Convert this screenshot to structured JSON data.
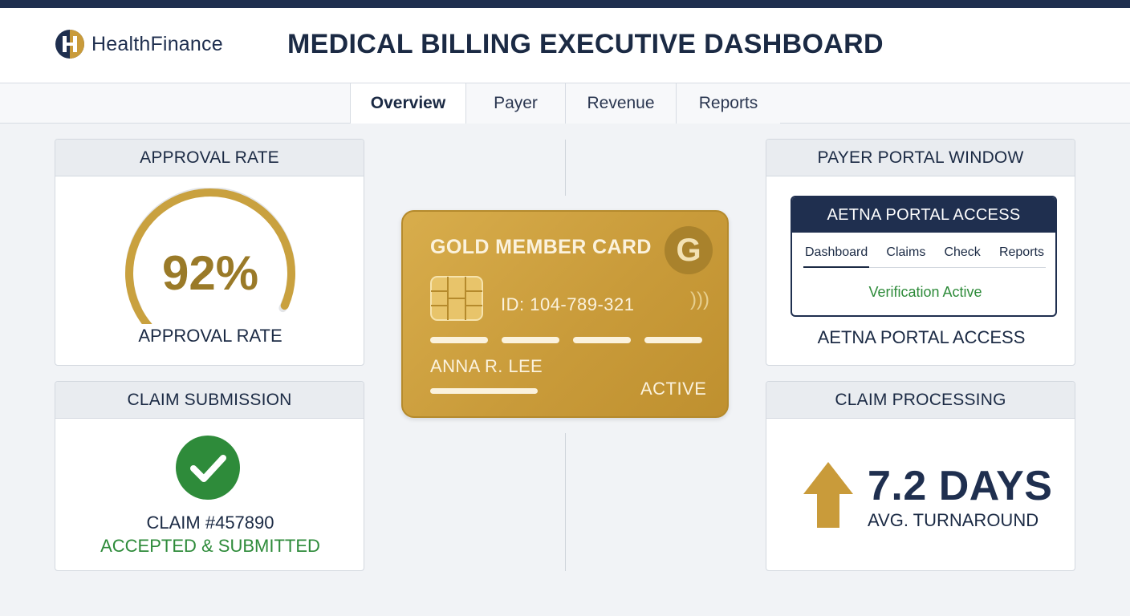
{
  "app": {
    "brand": "HealthFinance",
    "page_title": "MEDICAL BILLING EXECUTIVE DASHBOARD"
  },
  "tabs": [
    {
      "label": "Overview",
      "active": true
    },
    {
      "label": "Payer",
      "active": false
    },
    {
      "label": "Revenue",
      "active": false
    },
    {
      "label": "Reports",
      "active": false
    }
  ],
  "approval": {
    "header": "APPROVAL RATE",
    "value_text": "92%",
    "value": 92,
    "caption": "APPROVAL RATE",
    "color": "#c9a13f"
  },
  "claim_submission": {
    "header": "CLAIM SUBMISSION",
    "icon": "check-circle-icon",
    "claim_number": "CLAIM #457890",
    "status": "ACCEPTED & SUBMITTED",
    "status_color": "#2e8b3a"
  },
  "member_card": {
    "title": "GOLD MEMBER CARD",
    "logo_letter": "G",
    "id": "ID: 104-789-321",
    "name": "ANNA R. LEE",
    "status": "ACTIVE",
    "icons": [
      "chip-icon",
      "contactless-icon"
    ]
  },
  "payer_portal": {
    "header": "PAYER PORTAL WINDOW",
    "window_title": "AETNA PORTAL ACCESS",
    "nav": [
      {
        "label": "Dashboard",
        "active": true
      },
      {
        "label": "Claims",
        "active": false
      },
      {
        "label": "Check",
        "active": false
      },
      {
        "label": "Reports",
        "active": false
      }
    ],
    "status": "Verification Active",
    "caption": "AETNA PORTAL ACCESS"
  },
  "claim_processing": {
    "header": "CLAIM PROCESSING",
    "icon": "arrow-up-icon",
    "value": "7.2 DAYS",
    "caption": "AVG. TURNAROUND"
  },
  "colors": {
    "navy": "#1f2f4f",
    "gold": "#c99b3a",
    "green": "#2e8b3a"
  }
}
